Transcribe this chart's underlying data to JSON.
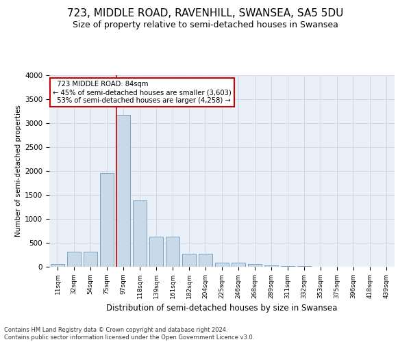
{
  "title": "723, MIDDLE ROAD, RAVENHILL, SWANSEA, SA5 5DU",
  "subtitle": "Size of property relative to semi-detached houses in Swansea",
  "xlabel": "Distribution of semi-detached houses by size in Swansea",
  "ylabel": "Number of semi-detached properties",
  "footer_line1": "Contains HM Land Registry data © Crown copyright and database right 2024.",
  "footer_line2": "Contains public sector information licensed under the Open Government Licence v3.0.",
  "categories": [
    "11sqm",
    "32sqm",
    "54sqm",
    "75sqm",
    "97sqm",
    "118sqm",
    "139sqm",
    "161sqm",
    "182sqm",
    "204sqm",
    "225sqm",
    "246sqm",
    "268sqm",
    "289sqm",
    "311sqm",
    "332sqm",
    "353sqm",
    "375sqm",
    "396sqm",
    "418sqm",
    "439sqm"
  ],
  "values": [
    55,
    310,
    310,
    1960,
    3170,
    1390,
    630,
    630,
    270,
    270,
    85,
    85,
    55,
    30,
    15,
    10,
    5,
    3,
    2,
    2,
    2
  ],
  "bar_color": "#c9d9e8",
  "bar_edge_color": "#6a9abf",
  "red_line_color": "#cc0000",
  "annotation_box_color": "#ffffff",
  "annotation_box_edge_color": "#cc0000",
  "property_label": "723 MIDDLE ROAD: 84sqm",
  "pct_smaller": 45,
  "pct_larger": 53,
  "n_smaller": 3603,
  "n_larger": 4258,
  "ylim": [
    0,
    4000
  ],
  "yticks": [
    0,
    500,
    1000,
    1500,
    2000,
    2500,
    3000,
    3500,
    4000
  ],
  "grid_color": "#d0d8e8",
  "background_color": "#eaf0f8",
  "title_fontsize": 11,
  "subtitle_fontsize": 9,
  "red_line_x": 3.6
}
